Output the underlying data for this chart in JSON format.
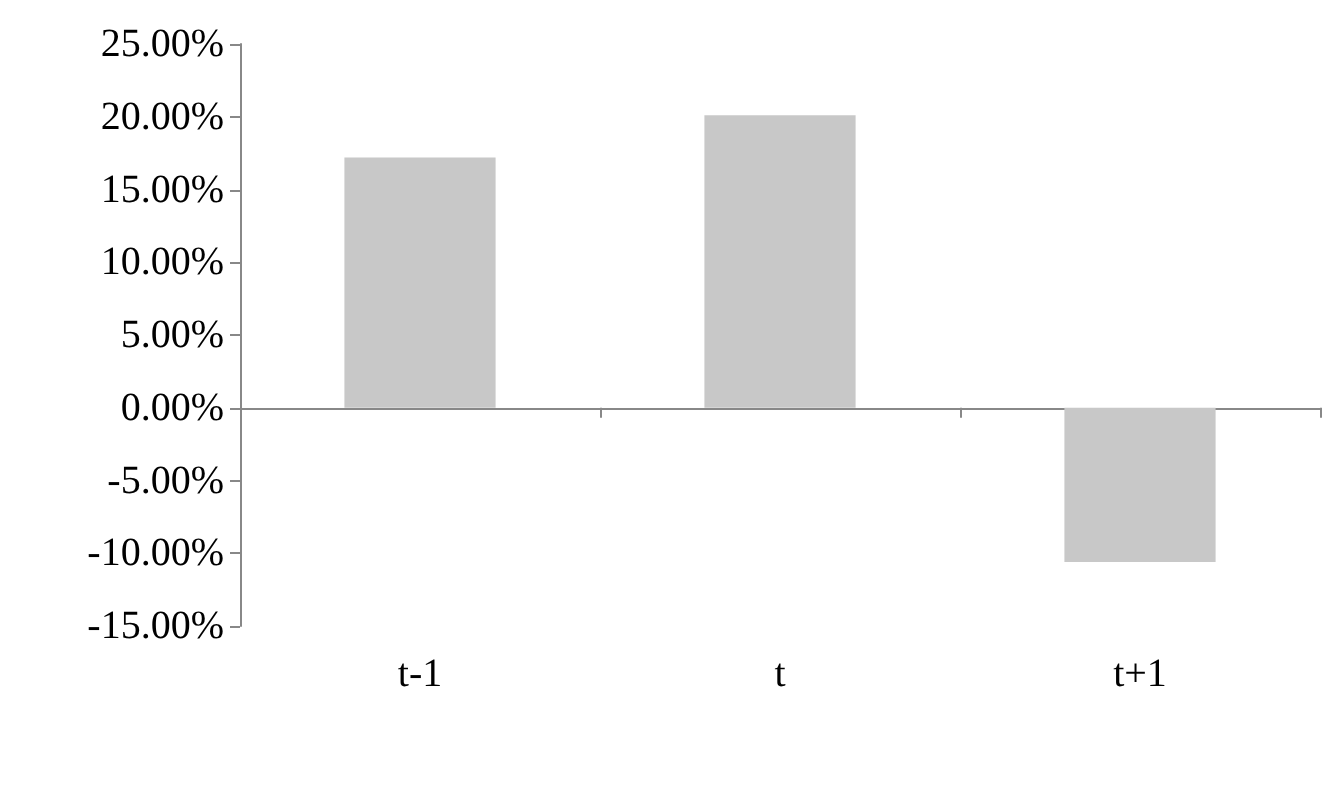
{
  "chart_data": {
    "type": "bar",
    "categories": [
      "t-1",
      "t",
      "t+1"
    ],
    "series": [
      {
        "color": "#c8c8c8",
        "values": [
          17.2,
          20.1,
          -10.6
        ]
      }
    ],
    "ylim": [
      -15,
      25
    ],
    "yticks": [
      {
        "value": -15,
        "label": "-15.00%"
      },
      {
        "value": -10,
        "label": "-10.00%"
      },
      {
        "value": -5,
        "label": "-5.00%"
      },
      {
        "value": 0,
        "label": "0.00%"
      },
      {
        "value": 5,
        "label": "5.00%"
      },
      {
        "value": 10,
        "label": "10.00%"
      },
      {
        "value": 15,
        "label": "15.00%"
      },
      {
        "value": 20,
        "label": "20.00%"
      },
      {
        "value": 25,
        "label": "25.00%"
      }
    ]
  }
}
